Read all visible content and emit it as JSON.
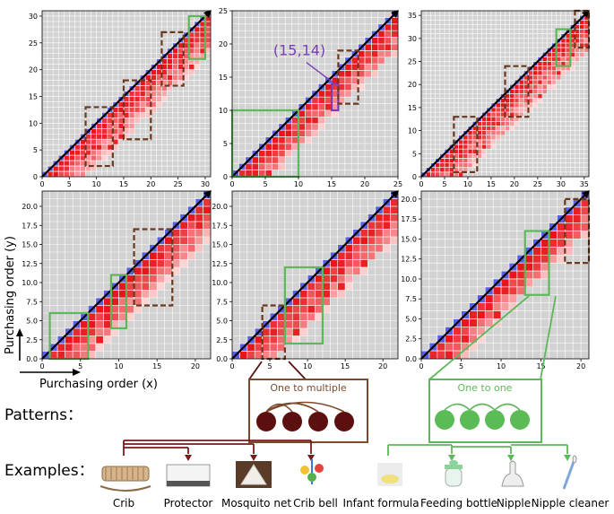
{
  "figure": {
    "ylabel": "Purchasing order (y)",
    "xlabel": "Purchasing order (x)",
    "annotation": "(15,14)",
    "patterns_label": "Patterns：",
    "examples_label": "Examples：",
    "pattern_one_to_multiple": "One to multiple",
    "pattern_one_to_one": "One to one",
    "colors": {
      "diagonal_line": "#000000",
      "diagonal_cells": "#5a5fe8",
      "background_cells": "#cccccc",
      "heat_dark": "#e8151b",
      "heat_light": "#ffd4d4",
      "brown_box": "#6b3a1e",
      "green_box": "#5db85a",
      "purple_box": "#7a3fb5",
      "pattern_node_brown": "#5c0f0f",
      "pattern_node_green": "#5bbc57",
      "tree_brown": "#7a1a1a",
      "tree_green": "#5db85a"
    }
  },
  "examples": {
    "items": [
      {
        "label": "Crib",
        "icon": "crib-icon"
      },
      {
        "label": "Protector",
        "icon": "protector-icon"
      },
      {
        "label": "Mosquito net",
        "icon": "mosquito-net-icon"
      },
      {
        "label": "Crib bell",
        "icon": "crib-bell-icon"
      },
      {
        "label": "Infant formula",
        "icon": "infant-formula-icon"
      },
      {
        "label": "Feeding bottle",
        "icon": "feeding-bottle-icon"
      },
      {
        "label": "Nipple",
        "icon": "nipple-icon"
      },
      {
        "label": "Nipple cleaner",
        "icon": "nipple-cleaner-icon"
      }
    ]
  },
  "chart_data": [
    {
      "type": "heatmap",
      "n": 31,
      "xlim": [
        0,
        31
      ],
      "ylim": [
        0,
        31
      ],
      "xticks": [
        0,
        5,
        10,
        15,
        20,
        25,
        30
      ],
      "yticks": [
        0,
        5,
        10,
        15,
        20,
        25,
        30
      ],
      "boxes": [
        {
          "style": "brown",
          "x": [
            8,
            13
          ],
          "y": [
            2,
            13
          ]
        },
        {
          "style": "brown",
          "x": [
            15,
            20
          ],
          "y": [
            7,
            18
          ]
        },
        {
          "style": "brown",
          "x": [
            22,
            26
          ],
          "y": [
            17,
            27
          ]
        },
        {
          "style": "green",
          "x": [
            27,
            30
          ],
          "y": [
            22,
            30
          ]
        }
      ]
    },
    {
      "type": "heatmap",
      "n": 25,
      "xlim": [
        0,
        25
      ],
      "ylim": [
        0,
        25
      ],
      "xticks": [
        0,
        5,
        10,
        15,
        20,
        25
      ],
      "yticks": [
        0,
        5,
        10,
        15,
        20,
        25
      ],
      "boxes": [
        {
          "style": "green",
          "x": [
            0,
            10
          ],
          "y": [
            0,
            10
          ]
        },
        {
          "style": "purple",
          "x": [
            15,
            16
          ],
          "y": [
            10,
            14
          ]
        },
        {
          "style": "brown",
          "x": [
            16,
            19
          ],
          "y": [
            11,
            19
          ]
        }
      ]
    },
    {
      "type": "heatmap",
      "n": 36,
      "xlim": [
        0,
        36
      ],
      "ylim": [
        0,
        36
      ],
      "xticks": [
        0,
        5,
        10,
        15,
        20,
        25,
        30,
        35
      ],
      "yticks": [
        0,
        5,
        10,
        15,
        20,
        25,
        30,
        35
      ],
      "boxes": [
        {
          "style": "brown",
          "x": [
            7,
            12
          ],
          "y": [
            1,
            13
          ]
        },
        {
          "style": "brown",
          "x": [
            18,
            23
          ],
          "y": [
            13,
            24
          ]
        },
        {
          "style": "green",
          "x": [
            29,
            32
          ],
          "y": [
            24,
            32
          ]
        },
        {
          "style": "brown",
          "x": [
            33,
            36
          ],
          "y": [
            28,
            36
          ]
        }
      ]
    },
    {
      "type": "heatmap",
      "n": 22,
      "xlim": [
        0,
        22
      ],
      "ylim": [
        0,
        22
      ],
      "xticks": [
        0,
        5,
        10,
        15,
        20
      ],
      "yticks": [
        0.0,
        2.5,
        5.0,
        7.5,
        10.0,
        12.5,
        15.0,
        17.5,
        20.0
      ],
      "boxes": [
        {
          "style": "green",
          "x": [
            1,
            6
          ],
          "y": [
            0,
            6
          ]
        },
        {
          "style": "green",
          "x": [
            9,
            11
          ],
          "y": [
            4,
            11
          ]
        },
        {
          "style": "brown",
          "x": [
            12,
            17
          ],
          "y": [
            7,
            17
          ]
        }
      ]
    },
    {
      "type": "heatmap",
      "n": 22,
      "xlim": [
        0,
        22
      ],
      "ylim": [
        0,
        22
      ],
      "xticks": [
        0,
        5,
        10,
        15,
        20
      ],
      "yticks": [
        0.0,
        2.5,
        5.0,
        7.5,
        10.0,
        12.5,
        15.0,
        17.5,
        20.0
      ],
      "boxes": [
        {
          "style": "brown",
          "x": [
            4,
            7
          ],
          "y": [
            0,
            7
          ]
        },
        {
          "style": "green",
          "x": [
            7,
            12
          ],
          "y": [
            2,
            12
          ]
        }
      ]
    },
    {
      "type": "heatmap",
      "n": 21,
      "xlim": [
        0,
        21
      ],
      "ylim": [
        0,
        21
      ],
      "xticks": [
        0,
        5,
        10,
        15,
        20
      ],
      "yticks": [
        0.0,
        2.5,
        5.0,
        7.5,
        10.0,
        12.5,
        15.0,
        17.5,
        20.0
      ],
      "boxes": [
        {
          "style": "green",
          "x": [
            13,
            16
          ],
          "y": [
            8,
            16
          ]
        },
        {
          "style": "brown",
          "x": [
            18,
            21
          ],
          "y": [
            12,
            20
          ]
        }
      ]
    }
  ]
}
